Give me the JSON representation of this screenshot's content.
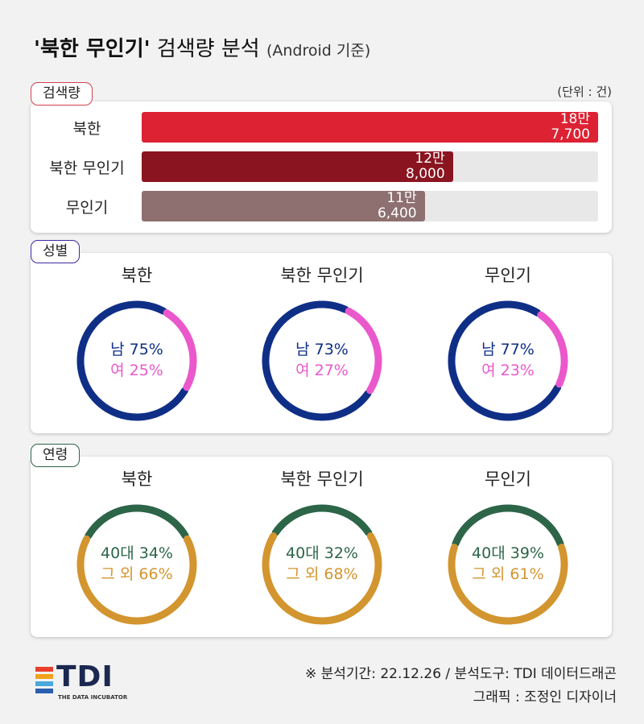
{
  "title": {
    "quoted": "'북한 무인기'",
    "main": "검색량 분석",
    "sub": "(Android 기준)"
  },
  "sections": {
    "volume": "검색량",
    "gender": "성별",
    "age": "연령"
  },
  "unit": "(단위 : 건)",
  "colors": {
    "male": "#0f2f87",
    "female": "#ea58cc",
    "age40": "#2d6549",
    "other": "#d3952f",
    "bar1": "#dc2233",
    "bar2": "#8a1520",
    "bar3": "#8e7070",
    "tag_volume": "#d2424f",
    "tag_gender": "#3c2aa5",
    "tag_age": "#2d6549"
  },
  "chart_data": [
    {
      "type": "bar",
      "categories": [
        "북한",
        "북한 무인기",
        "무인기"
      ],
      "values": [
        187700,
        128000,
        116400
      ],
      "value_labels": [
        "18만\n7,700",
        "12만\n8,000",
        "11만\n6,400"
      ],
      "max": 187700
    },
    {
      "type": "pie",
      "panels": [
        {
          "title": "북한",
          "male": 75,
          "female": 25,
          "male_label": "남 75%",
          "female_label": "여 25%"
        },
        {
          "title": "북한 무인기",
          "male": 73,
          "female": 27,
          "male_label": "남 73%",
          "female_label": "여 27%"
        },
        {
          "title": "무인기",
          "male": 77,
          "female": 23,
          "male_label": "남 77%",
          "female_label": "여 23%"
        }
      ]
    },
    {
      "type": "pie",
      "panels": [
        {
          "title": "북한",
          "age40": 34,
          "other": 66,
          "age40_label": "40대 34%",
          "other_label": "그 외 66%"
        },
        {
          "title": "북한 무인기",
          "age40": 32,
          "other": 68,
          "age40_label": "40대 32%",
          "other_label": "그 외 68%"
        },
        {
          "title": "무인기",
          "age40": 39,
          "other": 61,
          "age40_label": "40대 39%",
          "other_label": "그 외 61%"
        }
      ]
    }
  ],
  "footer": {
    "line1": "※ 분석기간: 22.12.26 / 분석도구: TDI 데이터드래곤",
    "line2": "그래픽 : 조정인 디자이너"
  },
  "logo": {
    "text": "TDI",
    "tagline": "THE DATA INCUBATOR"
  }
}
